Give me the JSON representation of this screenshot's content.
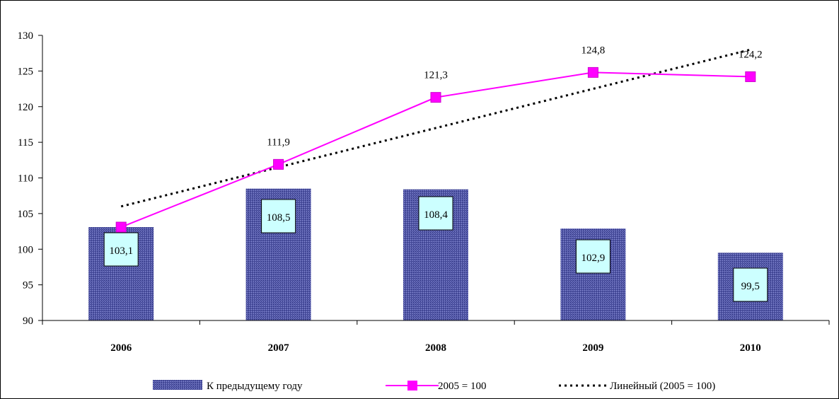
{
  "chart_data": {
    "type": "bar",
    "title": "",
    "xlabel": "",
    "ylabel": "",
    "categories": [
      "2006",
      "2007",
      "2008",
      "2009",
      "2010"
    ],
    "ylim": [
      90,
      130
    ],
    "yticks": [
      "90",
      "95",
      "100",
      "105",
      "110",
      "115",
      "120",
      "125",
      "130"
    ],
    "grid": false,
    "legend_position": "bottom",
    "series": [
      {
        "name": "К предыдущему году",
        "kind": "bar",
        "values": [
          103.1,
          108.5,
          108.4,
          102.9,
          99.5
        ],
        "labels": [
          "103,1",
          "108,5",
          "108,4",
          "102,9",
          "99,5"
        ],
        "color": "#4a4fa0"
      },
      {
        "name": "2005 = 100",
        "kind": "line",
        "values": [
          103.1,
          111.9,
          121.3,
          124.8,
          124.2
        ],
        "labels": [
          "",
          "111,9",
          "121,3",
          "124,8",
          "124,2"
        ],
        "color": "#ff00ff"
      },
      {
        "name": "Линейный (2005 = 100)",
        "kind": "trendline",
        "values": [
          106.0,
          111.5,
          117.0,
          122.5,
          128.0
        ],
        "color": "#000000"
      }
    ]
  }
}
